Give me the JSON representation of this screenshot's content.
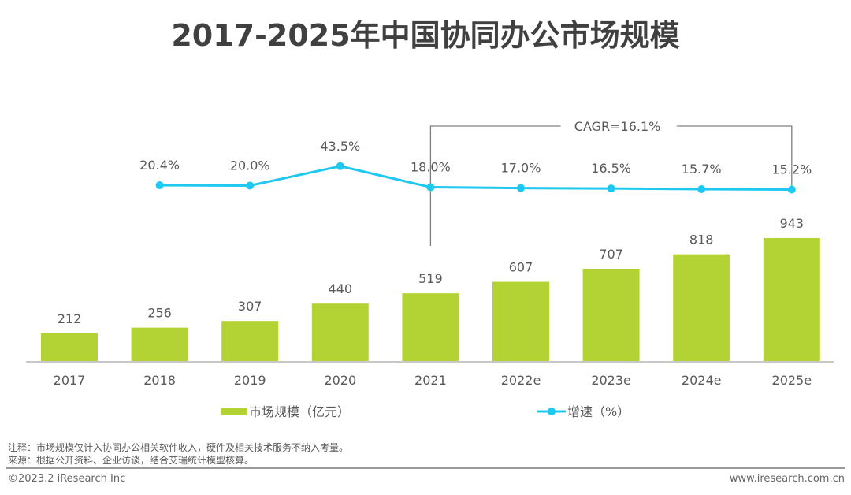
{
  "chart_data": {
    "type": "bar",
    "title": "2017-2025年中国协同办公市场规模",
    "categories": [
      "2017",
      "2018",
      "2019",
      "2020",
      "2021",
      "2022e",
      "2023e",
      "2024e",
      "2025e"
    ],
    "series": [
      {
        "name": "市场规模（亿元）",
        "type": "bar",
        "color": "#b3d334",
        "values": [
          212,
          256,
          307,
          440,
          519,
          607,
          707,
          818,
          943
        ],
        "labels": [
          "212",
          "256",
          "307",
          "440",
          "519",
          "607",
          "707",
          "818",
          "943"
        ]
      },
      {
        "name": "增速（%）",
        "type": "line",
        "color": "#1ec8f0",
        "values": [
          20.4,
          20.0,
          43.5,
          18.0,
          17.0,
          16.5,
          15.7,
          15.2
        ],
        "x_start_index": 1,
        "labels": [
          "20.4%",
          "20.0%",
          "43.5%",
          "18.0%",
          "17.0%",
          "16.5%",
          "15.7%",
          "15.2%"
        ]
      }
    ],
    "annotation": {
      "text": "CAGR=16.1%",
      "from_category": "2021",
      "to_category": "2025e"
    },
    "xlabel": "",
    "ylabel": "",
    "bar_ylim": [
      0,
      1000
    ],
    "grid": false,
    "legend": "bottom"
  },
  "notes": {
    "note": "注释：市场规模仅计入协同办公相关软件收入，硬件及相关技术服务不纳入考量。",
    "source": "来源：根据公开资料、企业访谈，结合艾瑞统计模型核算。"
  },
  "footer": {
    "copyright": "©2023.2 iResearch Inc",
    "website": "www.iresearch.com.cn"
  }
}
